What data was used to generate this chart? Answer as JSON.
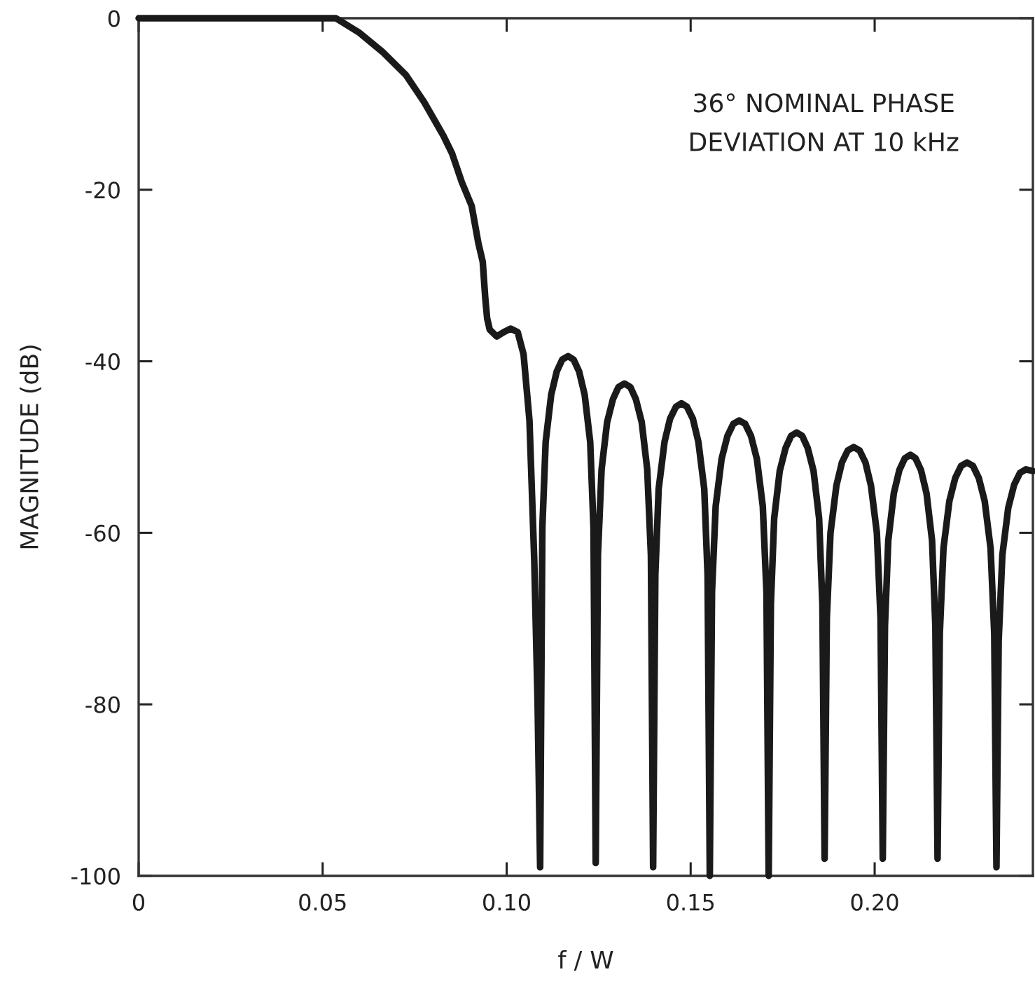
{
  "chart_data": {
    "type": "line",
    "xlabel": "f / W",
    "ylabel": "MAGNITUDE (dB)",
    "annotations": [
      "36° NOMINAL PHASE\nDEVIATION AT 10 kHz"
    ],
    "xlim": [
      0,
      0.243
    ],
    "ylim": [
      -100,
      0
    ],
    "xticks": [
      0,
      0.05,
      {
        "value": 0.1,
        "label": "0.10"
      },
      0.15,
      {
        "value": 0.2,
        "label": "0.20"
      }
    ],
    "yticks": [
      0,
      -20,
      -40,
      -60,
      -80,
      -100
    ],
    "grid": false,
    "marker": "none",
    "line_style": "solid",
    "series": [
      {
        "color": "#1a1a1a",
        "x": [
          0,
          0.0536,
          0.06,
          0.0662,
          0.0726,
          0.0776,
          0.0828,
          0.0852,
          0.0878,
          0.0905,
          0.0923,
          0.0935,
          0.0942,
          0.0947,
          0.0954,
          0.0973,
          0.0992,
          0.1011,
          0.103,
          0.1046,
          0.1062,
          0.1075,
          0.1084,
          0.1091,
          0.1097,
          0.1106,
          0.1121,
          0.1136,
          0.1151,
          0.1167,
          0.1182,
          0.1197,
          0.1212,
          0.1227,
          0.1236,
          0.1242,
          0.1248,
          0.1258,
          0.1273,
          0.1289,
          0.1304,
          0.132,
          0.1336,
          0.1351,
          0.1367,
          0.1382,
          0.1392,
          0.1398,
          0.1404,
          0.1413,
          0.1429,
          0.1444,
          0.146,
          0.1475,
          0.149,
          0.1506,
          0.1521,
          0.1537,
          0.1546,
          0.1552,
          0.1558,
          0.1568,
          0.1584,
          0.16,
          0.1616,
          0.1632,
          0.1648,
          0.1664,
          0.168,
          0.1696,
          0.1706,
          0.1712,
          0.1718,
          0.1727,
          0.1742,
          0.1758,
          0.1773,
          0.1788,
          0.1803,
          0.1818,
          0.1834,
          0.1849,
          0.1858,
          0.1864,
          0.187,
          0.188,
          0.1896,
          0.1911,
          0.1927,
          0.1943,
          0.1959,
          0.1975,
          0.199,
          0.2006,
          0.2016,
          0.2022,
          0.2028,
          0.2037,
          0.2052,
          0.2067,
          0.2082,
          0.2097,
          0.2111,
          0.2126,
          0.2141,
          0.2156,
          0.2165,
          0.2171,
          0.2177,
          0.2187,
          0.2203,
          0.2219,
          0.2235,
          0.2251,
          0.2267,
          0.2283,
          0.2299,
          0.2315,
          0.2325,
          0.2331,
          0.2337,
          0.2347,
          0.2363,
          0.2379,
          0.2395,
          0.2411,
          0.243
        ],
        "values": [
          0,
          0,
          -1.7,
          -3.9,
          -6.6,
          -9.8,
          -13.7,
          -15.8,
          -19.1,
          -21.9,
          -26.2,
          -28.4,
          -32.7,
          -35.0,
          -36.3,
          -37.1,
          -36.6,
          -36.2,
          -36.6,
          -39.2,
          -46.9,
          -63.2,
          -79.6,
          -99,
          -59.4,
          -49.4,
          -43.9,
          -41.2,
          -39.8,
          -39.4,
          -39.8,
          -41.2,
          -43.9,
          -49.4,
          -59.4,
          -98.5,
          -62.6,
          -52.6,
          -47.1,
          -44.4,
          -43.0,
          -42.6,
          -43.0,
          -44.4,
          -47.1,
          -52.6,
          -62.6,
          -99,
          -64.9,
          -54.9,
          -49.4,
          -46.7,
          -45.3,
          -44.9,
          -45.3,
          -46.7,
          -49.4,
          -54.9,
          -64.9,
          -100,
          -66.9,
          -56.9,
          -51.4,
          -48.7,
          -47.3,
          -46.9,
          -47.3,
          -48.7,
          -51.4,
          -56.9,
          -66.9,
          -100,
          -68.3,
          -58.3,
          -52.8,
          -50.1,
          -48.7,
          -48.3,
          -48.7,
          -50.1,
          -52.8,
          -58.3,
          -68.3,
          -98,
          -70.0,
          -60.0,
          -54.5,
          -51.8,
          -50.4,
          -50.0,
          -50.4,
          -51.8,
          -54.5,
          -60.0,
          -70.0,
          -98,
          -70.9,
          -60.9,
          -55.4,
          -52.7,
          -51.3,
          -50.9,
          -51.3,
          -52.7,
          -55.4,
          -60.9,
          -70.9,
          -98,
          -71.8,
          -61.8,
          -56.3,
          -53.6,
          -52.2,
          -51.8,
          -52.2,
          -53.6,
          -56.3,
          -61.8,
          -71.8,
          -99,
          -72.6,
          -62.6,
          -57.1,
          -54.4,
          -53.0,
          -52.6,
          -52.8
        ]
      }
    ]
  }
}
